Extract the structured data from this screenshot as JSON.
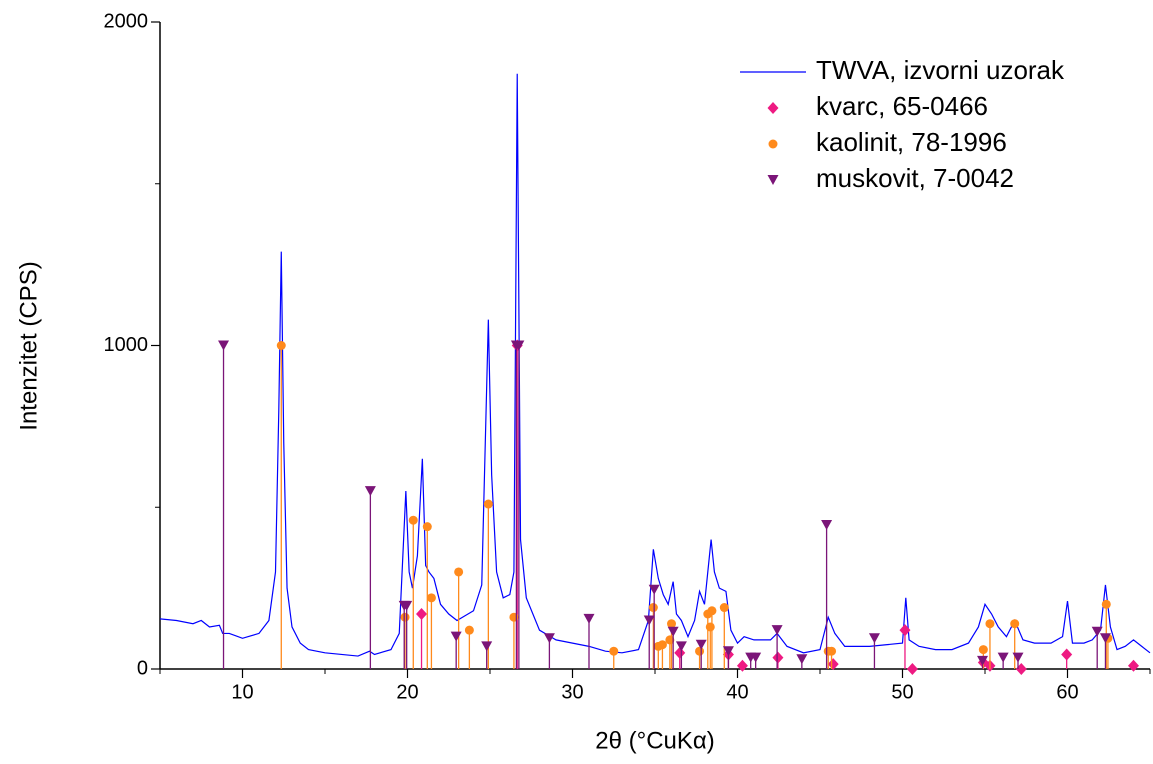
{
  "chart_data": {
    "type": "line",
    "x_label": "2θ (°CuKα)",
    "y_label": "Intenzitet (CPS)",
    "xlim": [
      5,
      65
    ],
    "xticks": [
      10,
      20,
      30,
      40,
      50,
      60
    ],
    "ylim": [
      0,
      2000
    ],
    "yticks": [
      0,
      1000,
      2000
    ],
    "series": [
      {
        "name": "TWVA, izvorni uzorak",
        "kind": "line",
        "color": "#0000ff",
        "x": [
          5,
          6,
          7,
          7.5,
          8,
          8.6,
          8.8,
          9.2,
          10,
          11,
          11.6,
          12,
          12.2,
          12.35,
          12.5,
          12.7,
          13,
          13.5,
          14,
          15,
          16,
          17,
          17.7,
          18,
          19,
          19.5,
          19.9,
          20.1,
          20.3,
          20.6,
          20.9,
          21.1,
          21.3,
          21.6,
          22,
          22.5,
          23,
          23.5,
          24,
          24.5,
          24.9,
          25.1,
          25.4,
          25.8,
          26.2,
          26.45,
          26.65,
          26.85,
          27.2,
          28,
          29,
          30,
          31,
          32,
          33,
          34,
          34.6,
          34.9,
          35.2,
          35.5,
          35.8,
          36.1,
          36.3,
          36.6,
          37,
          37.4,
          37.7,
          38,
          38.4,
          38.6,
          38.9,
          39.3,
          39.6,
          40,
          40.4,
          41,
          42,
          42.4,
          43,
          44,
          45,
          45.5,
          45.9,
          46.5,
          47,
          48,
          49,
          50,
          50.2,
          50.4,
          51,
          52,
          53,
          54,
          54.6,
          55,
          55.4,
          55.8,
          56.3,
          56.8,
          57.3,
          58,
          59,
          59.7,
          60,
          60.3,
          61,
          61.5,
          62,
          62.3,
          62.6,
          63,
          63.5,
          64,
          64.5,
          65
        ],
        "values": [
          155,
          150,
          140,
          150,
          130,
          135,
          110,
          110,
          95,
          110,
          150,
          300,
          800,
          1290,
          700,
          250,
          130,
          80,
          60,
          50,
          45,
          40,
          55,
          45,
          60,
          110,
          550,
          300,
          250,
          350,
          650,
          320,
          300,
          280,
          200,
          170,
          150,
          165,
          180,
          260,
          1080,
          600,
          300,
          220,
          230,
          300,
          1840,
          400,
          220,
          120,
          90,
          80,
          70,
          55,
          50,
          60,
          150,
          370,
          280,
          230,
          200,
          270,
          170,
          150,
          100,
          150,
          240,
          200,
          400,
          300,
          250,
          240,
          120,
          80,
          100,
          90,
          90,
          110,
          70,
          50,
          60,
          160,
          110,
          70,
          70,
          70,
          75,
          80,
          220,
          90,
          70,
          60,
          60,
          80,
          130,
          200,
          170,
          130,
          100,
          150,
          90,
          80,
          80,
          100,
          210,
          80,
          80,
          90,
          120,
          260,
          130,
          60,
          70,
          90,
          70,
          50
        ]
      },
      {
        "name": "kvarc, 65-0466",
        "kind": "stick",
        "marker": "diamond",
        "color": "#ee1a82",
        "x": [
          20.85,
          26.65,
          36.5,
          39.45,
          40.3,
          42.45,
          45.8,
          50.15,
          50.6,
          54.9,
          55.3,
          57.2,
          59.95,
          64.0
        ],
        "values": [
          170,
          1000,
          50,
          45,
          10,
          35,
          15,
          120,
          0,
          20,
          10,
          0,
          45,
          10
        ]
      },
      {
        "name": "kaolinit, 78-1996",
        "kind": "stick",
        "marker": "circle",
        "color": "#ff8a1c",
        "x": [
          12.35,
          19.85,
          20.35,
          21.2,
          21.45,
          23.1,
          23.75,
          24.9,
          26.45,
          32.5,
          34.9,
          35.2,
          35.45,
          35.9,
          36.0,
          37.7,
          38.2,
          38.35,
          38.45,
          39.2,
          45.5,
          45.7,
          54.9,
          55.3,
          56.8,
          62.35,
          62.45
        ],
        "values": [
          1000,
          160,
          460,
          440,
          220,
          300,
          120,
          510,
          160,
          55,
          190,
          70,
          75,
          90,
          140,
          55,
          170,
          130,
          180,
          190,
          55,
          55,
          60,
          140,
          140,
          200,
          95
        ]
      },
      {
        "name": "muskovit, 7-0042",
        "kind": "stick",
        "marker": "triangle",
        "color": "#7b1578",
        "x": [
          8.85,
          17.75,
          19.8,
          19.95,
          22.95,
          24.8,
          26.6,
          26.75,
          28.6,
          31.0,
          34.65,
          34.95,
          36.1,
          36.6,
          37.8,
          39.45,
          40.8,
          41.1,
          42.4,
          43.9,
          45.4,
          48.3,
          54.85,
          56.1,
          57.0,
          61.8,
          62.3
        ],
        "values": [
          1000,
          550,
          195,
          195,
          100,
          70,
          1000,
          1000,
          95,
          155,
          150,
          245,
          115,
          70,
          75,
          55,
          35,
          35,
          120,
          30,
          445,
          95,
          25,
          35,
          35,
          115,
          95
        ]
      }
    ]
  }
}
